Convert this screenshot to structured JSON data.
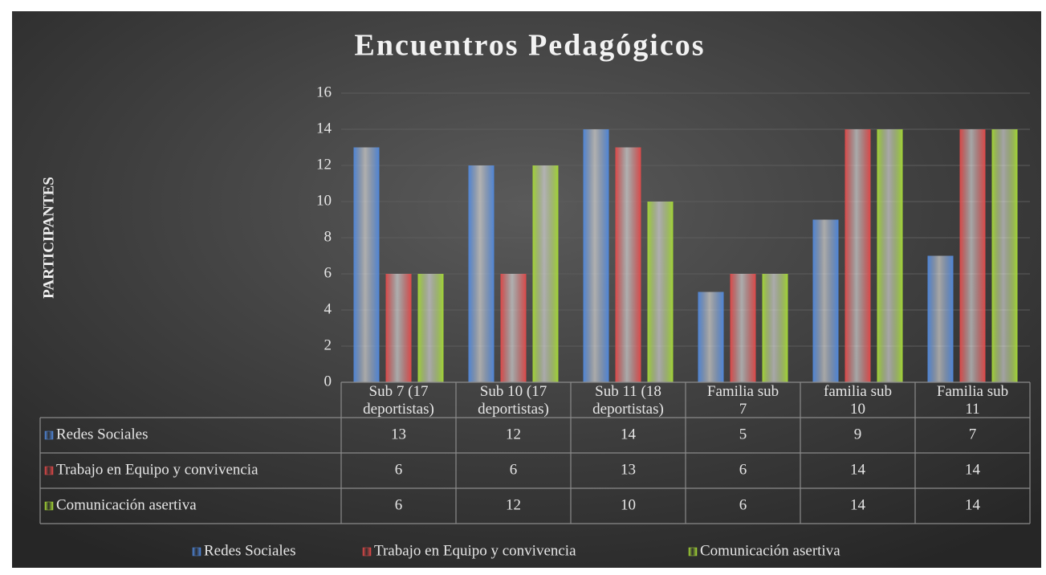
{
  "chart_data": {
    "type": "bar",
    "title": "Encuentros Pedagógicos",
    "y_label": "PARTICIPANTES",
    "categories": [
      "Sub 7 (17 deportistas)",
      "Sub 10 (17 deportistas)",
      "Sub 11 (18 deportistas)",
      "Familia sub 7",
      "familia sub 10",
      "Familia sub 11"
    ],
    "series": [
      {
        "name": "Redes Sociales",
        "color": "#4f86d9",
        "values": [
          13,
          12,
          14,
          5,
          9,
          7
        ]
      },
      {
        "name": "Trabajo en Equipo y convivencia",
        "color": "#e04848",
        "values": [
          6,
          6,
          13,
          6,
          14,
          14
        ]
      },
      {
        "name": "Comunicación asertiva",
        "color": "#a3d635",
        "values": [
          6,
          12,
          10,
          6,
          14,
          14
        ]
      }
    ],
    "ylim": [
      0,
      16
    ],
    "yticks": [
      0,
      2,
      4,
      6,
      8,
      10,
      12,
      14,
      16
    ],
    "grid": true,
    "legend": "bottom",
    "data_table": true
  }
}
